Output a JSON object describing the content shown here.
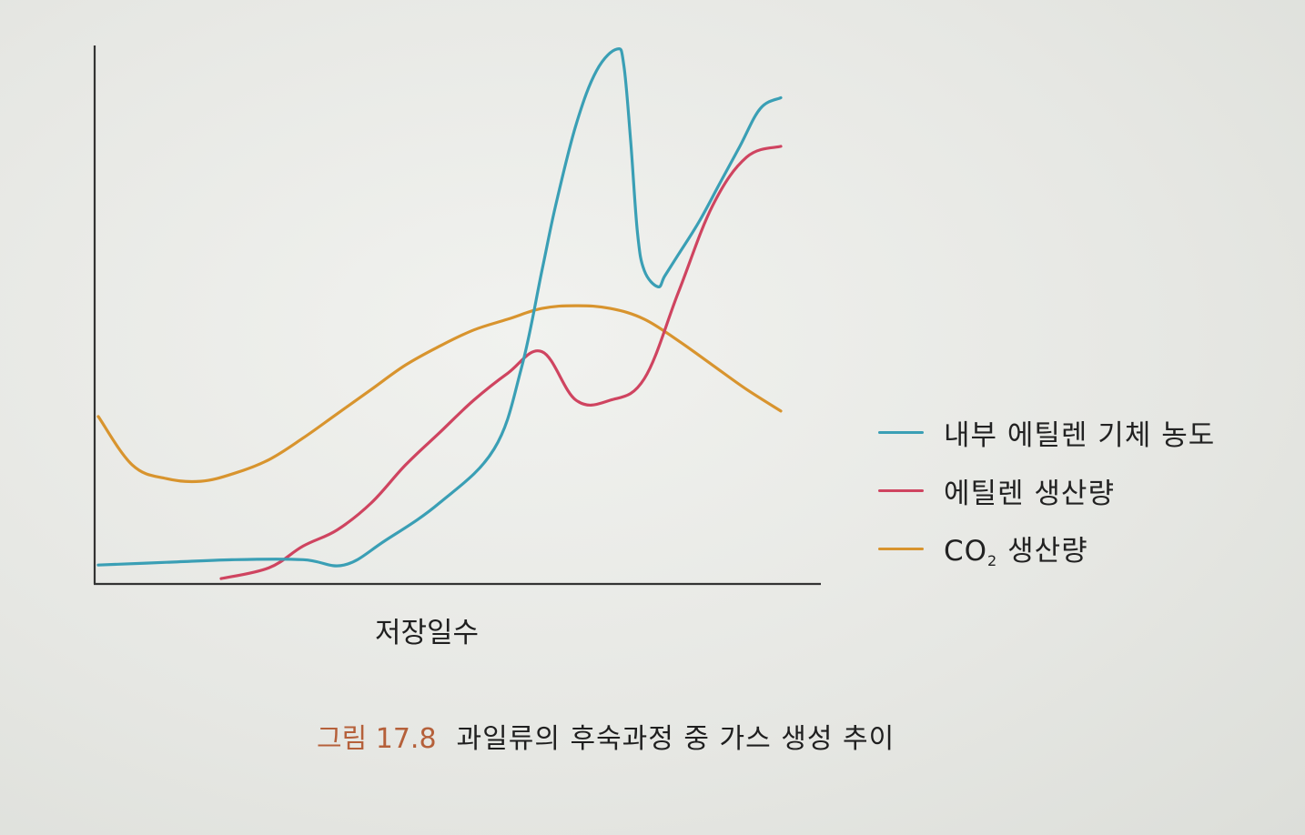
{
  "chart_data": {
    "type": "line",
    "title": "",
    "xlabel": "저장일수",
    "ylabel": "",
    "xlim": [
      0,
      100
    ],
    "ylim": [
      0,
      100
    ],
    "grid": false,
    "legend_position": "right",
    "series": [
      {
        "name": "내부 에틸렌 기체 농도",
        "color": "#3a9fb5",
        "x": [
          0,
          10,
          20,
          30,
          36,
          42,
          50,
          58,
          62,
          65,
          67,
          70,
          73,
          76,
          77,
          78,
          79,
          80,
          82,
          83,
          85,
          88,
          91,
          94,
          97,
          100
        ],
        "y": [
          3.5,
          4.0,
          4.5,
          4.5,
          3.5,
          8.0,
          15.0,
          25.0,
          40.0,
          58.0,
          70.0,
          85.0,
          95.0,
          99.0,
          96.0,
          82.0,
          65.0,
          58.0,
          55.0,
          57.0,
          61.0,
          67.0,
          74.0,
          81.0,
          88.0,
          90.0
        ]
      },
      {
        "name": "에틸렌 생산량",
        "color": "#cf4460",
        "x": [
          18,
          25,
          30,
          35,
          40,
          45,
          50,
          55,
          60,
          65,
          70,
          75,
          80,
          85,
          90,
          95,
          100
        ],
        "y": [
          1.0,
          3.0,
          7.0,
          10.0,
          15.0,
          22.0,
          28.0,
          34.0,
          39.0,
          43.0,
          34.0,
          34.0,
          38.0,
          54.0,
          70.0,
          79.0,
          81.0
        ]
      },
      {
        "name": "CO₂ 생산량",
        "color": "#d8942e",
        "x": [
          0,
          5,
          10,
          15,
          20,
          25,
          30,
          35,
          40,
          45,
          50,
          55,
          60,
          65,
          70,
          75,
          80,
          85,
          90,
          95,
          100
        ],
        "y": [
          31.0,
          22.0,
          19.5,
          19.0,
          20.5,
          23.0,
          27.0,
          31.5,
          36.0,
          40.5,
          44.0,
          47.0,
          49.0,
          51.0,
          51.5,
          51.0,
          49.0,
          45.0,
          40.5,
          36.0,
          32.0
        ]
      }
    ]
  },
  "legend": {
    "items": [
      {
        "label": "내부 에틸렌 기체 농도",
        "color": "#3a9fb5"
      },
      {
        "label": "에틸렌 생산량",
        "color": "#cf4460"
      },
      {
        "label_main": "CO",
        "label_sub": "2",
        "label_rest": " 생산량",
        "color": "#d8942e"
      }
    ]
  },
  "caption": {
    "number": "그림 17.8",
    "text": "과일류의 후숙과정 중 가스 생성 추이"
  }
}
